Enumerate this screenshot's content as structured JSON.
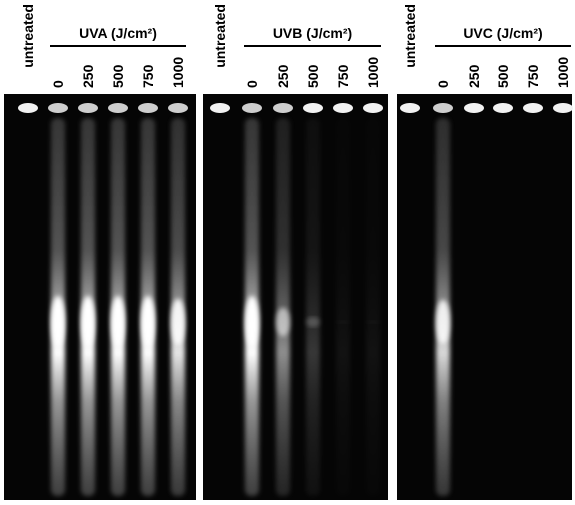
{
  "panels": [
    {
      "title": "UVA (J/cm²)",
      "lanes": [
        "untreated",
        "0",
        "250",
        "500",
        "750",
        "1000"
      ]
    },
    {
      "title": "UVB (J/cm²)",
      "lanes": [
        "untreated",
        "0",
        "250",
        "500",
        "750",
        "1000"
      ]
    },
    {
      "title": "UVC (J/cm²)",
      "lanes": [
        "untreated",
        "0",
        "250",
        "500",
        "750",
        "1000"
      ]
    }
  ]
}
